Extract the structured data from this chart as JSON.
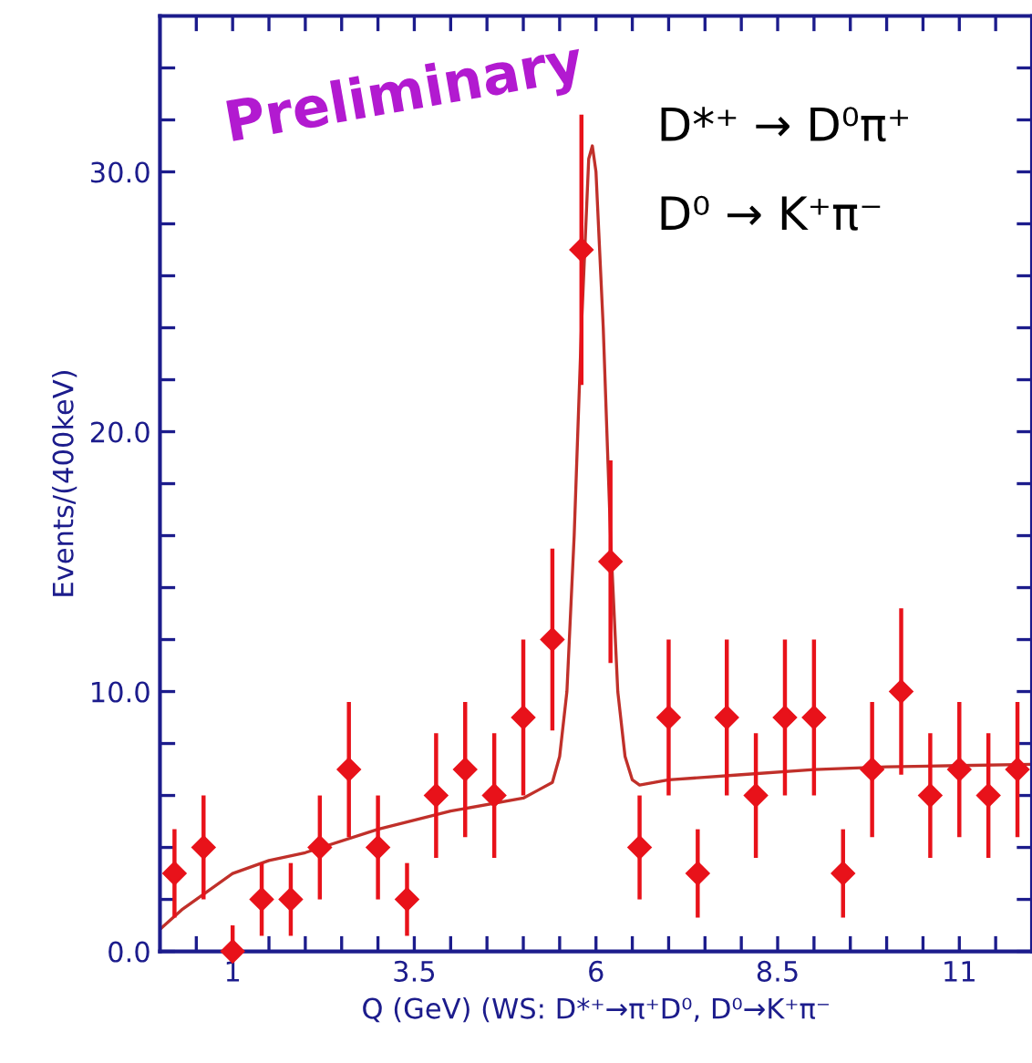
{
  "chart_data": {
    "type": "scatter",
    "xlabel": "Q (GeV) (WS: D*⁺→π⁺D⁰, D⁰→K⁺π⁻",
    "ylabel": "Events/(400keV)",
    "annotations": [
      "Preliminary",
      "D*⁺ → D⁰π⁺",
      "D⁰ → K⁺π⁻"
    ],
    "xlim": [
      0,
      12
    ],
    "ylim": [
      0,
      36
    ],
    "xticks": [
      {
        "value": 0.5,
        "label": null
      },
      {
        "value": 1,
        "label": "1"
      },
      {
        "value": 1.5,
        "label": null
      },
      {
        "value": 2,
        "label": null
      },
      {
        "value": 2.5,
        "label": null
      },
      {
        "value": 3,
        "label": null
      },
      {
        "value": 3.5,
        "label": "3.5"
      },
      {
        "value": 4,
        "label": null
      },
      {
        "value": 4.5,
        "label": null
      },
      {
        "value": 5,
        "label": null
      },
      {
        "value": 5.5,
        "label": null
      },
      {
        "value": 6,
        "label": "6"
      },
      {
        "value": 6.5,
        "label": null
      },
      {
        "value": 7,
        "label": null
      },
      {
        "value": 7.5,
        "label": null
      },
      {
        "value": 8,
        "label": null
      },
      {
        "value": 8.5,
        "label": "8.5"
      },
      {
        "value": 9,
        "label": null
      },
      {
        "value": 9.5,
        "label": null
      },
      {
        "value": 10,
        "label": null
      },
      {
        "value": 10.5,
        "label": null
      },
      {
        "value": 11,
        "label": "11"
      },
      {
        "value": 11.5,
        "label": null
      }
    ],
    "yticks": [
      {
        "value": 0,
        "label": "0.0"
      },
      {
        "value": 2,
        "label": null
      },
      {
        "value": 4,
        "label": null
      },
      {
        "value": 6,
        "label": null
      },
      {
        "value": 8,
        "label": null
      },
      {
        "value": 10,
        "label": "10.0"
      },
      {
        "value": 12,
        "label": null
      },
      {
        "value": 14,
        "label": null
      },
      {
        "value": 16,
        "label": null
      },
      {
        "value": 18,
        "label": null
      },
      {
        "value": 20,
        "label": "20.0"
      },
      {
        "value": 22,
        "label": null
      },
      {
        "value": 24,
        "label": null
      },
      {
        "value": 26,
        "label": null
      },
      {
        "value": 28,
        "label": null
      },
      {
        "value": 30,
        "label": "30.0"
      },
      {
        "value": 32,
        "label": null
      },
      {
        "value": 34,
        "label": null
      }
    ],
    "grid": false,
    "series": [
      {
        "marker": "diamond",
        "color": "#e8121a",
        "x": [
          0.2,
          0.6,
          1.0,
          1.4,
          1.8,
          2.2,
          2.6,
          3.0,
          3.4,
          3.8,
          4.2,
          4.6,
          5.0,
          5.4,
          5.8,
          6.2,
          6.6,
          7.0,
          7.4,
          7.8,
          8.2,
          8.6,
          9.0,
          9.4,
          9.8,
          10.2,
          10.6,
          11.0,
          11.4,
          11.8
        ],
        "values": [
          3,
          4,
          0,
          2,
          2,
          4,
          7,
          4,
          2,
          6,
          7,
          6,
          9,
          12,
          27,
          15,
          4,
          9,
          3,
          9,
          6,
          9,
          9,
          3,
          7,
          10,
          6,
          7,
          6,
          7
        ],
        "errors": [
          1.7,
          2,
          [
            0,
            1
          ],
          1.4,
          1.4,
          2,
          2.6,
          2,
          1.4,
          2.4,
          2.6,
          2.4,
          3,
          3.5,
          5.2,
          3.9,
          2,
          3,
          1.7,
          3,
          2.4,
          3,
          3,
          1.7,
          2.6,
          3.2,
          2.4,
          2.6,
          2.4,
          2.6
        ]
      },
      {
        "type": "line",
        "marker": "none",
        "line_style": "solid",
        "color": "#c0302a",
        "x": [
          0,
          0.3,
          0.6,
          1.0,
          1.5,
          2.0,
          3.0,
          4.0,
          5.0,
          5.2,
          5.4,
          5.5,
          5.6,
          5.7,
          5.8,
          5.9,
          5.95,
          6.0,
          6.1,
          6.2,
          6.3,
          6.4,
          6.5,
          6.6,
          7.0,
          8.0,
          9.0,
          10.0,
          11.0,
          12.0
        ],
        "values": [
          0.85,
          1.6,
          2.2,
          3.0,
          3.5,
          3.8,
          4.7,
          5.4,
          5.9,
          6.2,
          6.5,
          7.5,
          10,
          16,
          24,
          30.5,
          31,
          30,
          24,
          16,
          10,
          7.5,
          6.6,
          6.4,
          6.6,
          6.8,
          7.0,
          7.1,
          7.15,
          7.2
        ]
      }
    ]
  }
}
